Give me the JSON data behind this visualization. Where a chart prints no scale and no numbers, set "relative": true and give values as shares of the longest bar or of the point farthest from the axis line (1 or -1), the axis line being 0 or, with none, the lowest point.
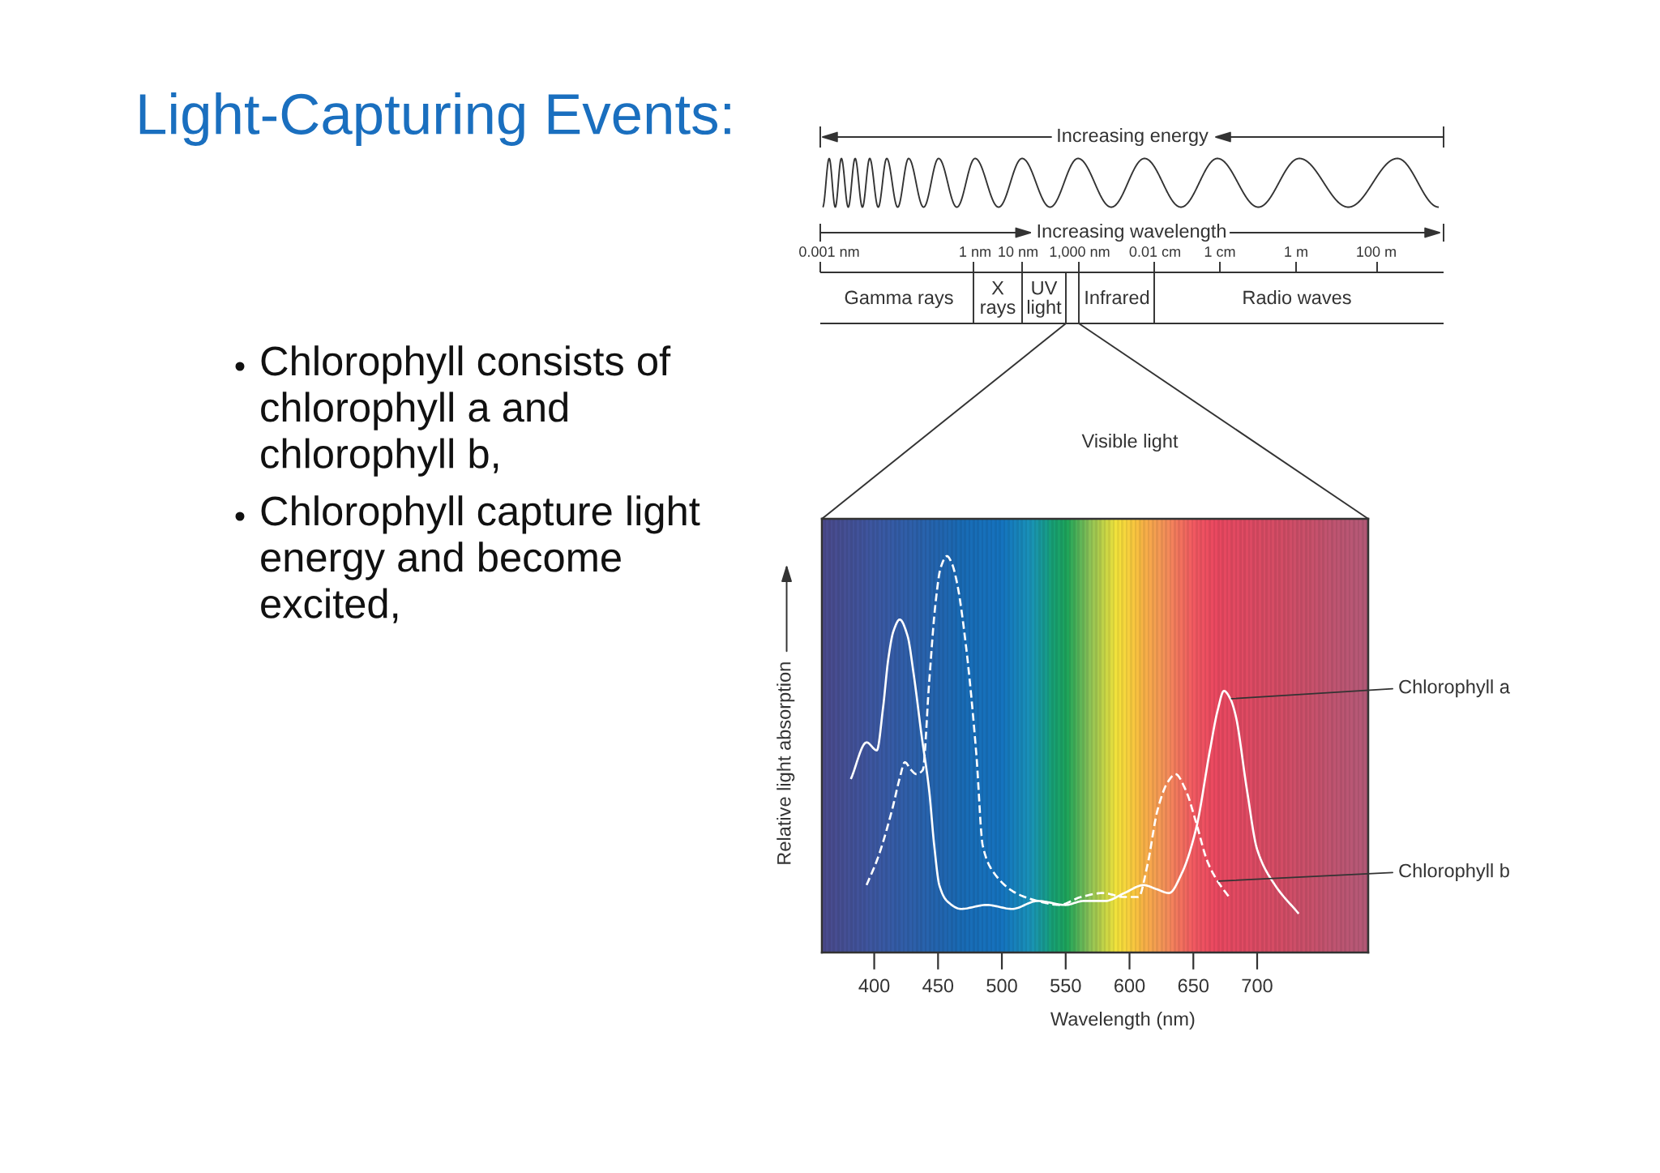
{
  "chart_data": [
    {
      "type": "other",
      "title": "Light-Capturing Events:",
      "annotations": [
        "Chlorophyll consists of\nchlorophyll a and\nchlorophyll b,",
        "Chlorophyll capture light\nenergy and become\nexcited,"
      ]
    },
    {
      "type": "other",
      "annotations": [
        "Increasing energy",
        "Increasing wavelength",
        "0.001 nm",
        "1 nm",
        "10 nm",
        "1,000 nm",
        "0.01 cm",
        "1 cm",
        "1 m",
        "100 m",
        "Gamma rays",
        "X\nrays",
        "UV\nlight",
        "Infrared",
        "Radio waves",
        "Visible light"
      ]
    },
    {
      "type": "line",
      "relative": true,
      "xlabel": "Wavelength (nm)",
      "ylabel": "Relative light absorption",
      "xlim": [
        359,
        787
      ],
      "xticks": [
        400,
        450,
        500,
        550,
        600,
        650,
        700
      ],
      "series": [
        {
          "name": "Chlorophyll a",
          "color": "#ffffff",
          "line_style": "solid",
          "x": [
            382,
            394,
            402,
            407,
            411,
            415,
            420,
            426,
            431,
            437,
            443,
            447,
            451,
            457,
            468,
            488,
            508,
            528,
            550,
            564,
            581,
            596,
            611,
            621,
            631,
            641,
            652,
            663,
            669,
            674,
            679,
            683,
            692,
            700,
            714,
            732
          ],
          "values": [
            0.44,
            0.53,
            0.51,
            0.62,
            0.74,
            0.81,
            0.84,
            0.8,
            0.7,
            0.55,
            0.41,
            0.27,
            0.17,
            0.13,
            0.11,
            0.12,
            0.11,
            0.13,
            0.12,
            0.13,
            0.13,
            0.15,
            0.17,
            0.16,
            0.15,
            0.2,
            0.31,
            0.51,
            0.61,
            0.66,
            0.64,
            0.6,
            0.41,
            0.26,
            0.17,
            0.1
          ]
        },
        {
          "name": "Chlorophyll b",
          "color": "#ffffff",
          "line_style": "dashed",
          "x": [
            394,
            403,
            414,
            420,
            424,
            429,
            433,
            438,
            443,
            448,
            452,
            457,
            461,
            465,
            472,
            480,
            485,
            494,
            511,
            528,
            545,
            562,
            579,
            596,
            607,
            614,
            622,
            630,
            636,
            644,
            652,
            661,
            669,
            678
          ],
          "values": [
            0.17,
            0.24,
            0.36,
            0.44,
            0.48,
            0.46,
            0.45,
            0.46,
            0.68,
            0.88,
            0.97,
            1.0,
            0.98,
            0.93,
            0.77,
            0.5,
            0.27,
            0.2,
            0.15,
            0.13,
            0.12,
            0.14,
            0.15,
            0.14,
            0.14,
            0.22,
            0.36,
            0.43,
            0.45,
            0.41,
            0.33,
            0.23,
            0.18,
            0.14
          ]
        }
      ]
    }
  ]
}
